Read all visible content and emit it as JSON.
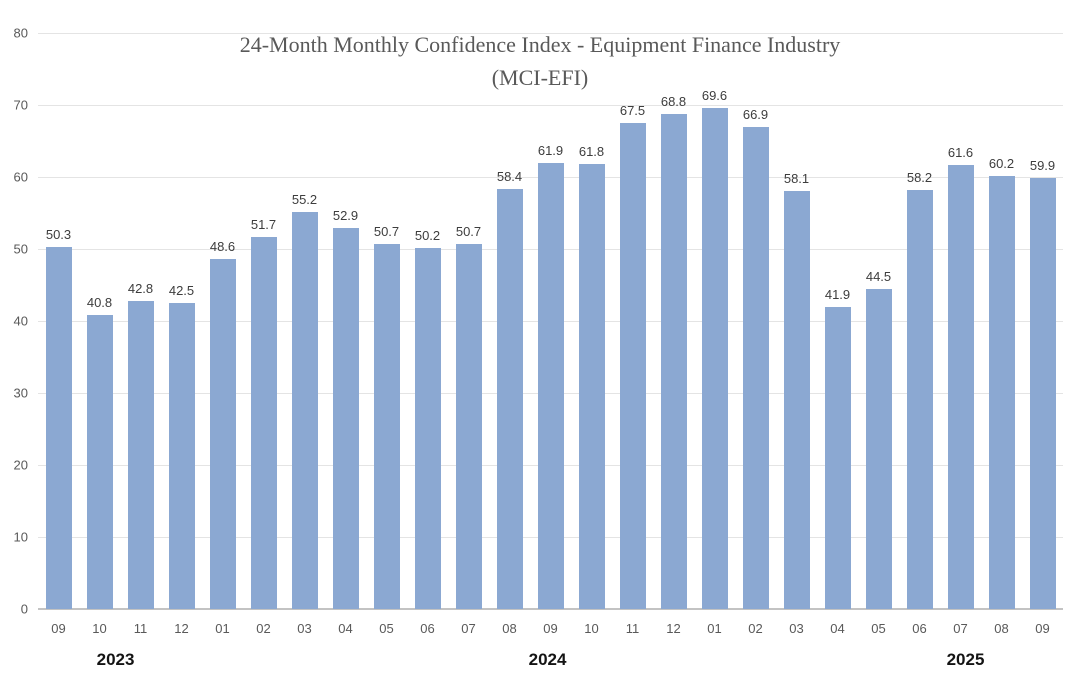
{
  "chart_data": {
    "type": "bar",
    "title_line1": "24-Month Monthly Confidence Index - Equipment Finance Industry",
    "title_line2": "(MCI-EFI)",
    "categories": [
      "09",
      "10",
      "11",
      "12",
      "01",
      "02",
      "03",
      "04",
      "05",
      "06",
      "07",
      "08",
      "09",
      "10",
      "11",
      "12",
      "01",
      "02",
      "03",
      "04",
      "05",
      "06",
      "07",
      "08",
      "09"
    ],
    "values": [
      50.3,
      40.8,
      42.8,
      42.5,
      48.6,
      51.7,
      55.2,
      52.9,
      50.7,
      50.2,
      50.7,
      58.4,
      61.9,
      61.8,
      67.5,
      68.8,
      69.6,
      66.9,
      58.1,
      41.9,
      44.5,
      58.2,
      61.6,
      60.2,
      59.9
    ],
    "year_labels": [
      {
        "label": "2023",
        "x_pct": 10.7
      },
      {
        "label": "2024",
        "x_pct": 50.7
      },
      {
        "label": "2025",
        "x_pct": 89.4
      }
    ],
    "y_ticks": [
      0,
      10,
      20,
      30,
      40,
      50,
      60,
      70,
      80
    ],
    "ylim": [
      0,
      80
    ],
    "grid": true,
    "legend": "none",
    "bar_color": "#8ba8d2",
    "gridline_color": "#e4e4e4",
    "axis_line_color": "#c3c3c3",
    "title_color": "#595959",
    "value_label_color": "#3d3d3d",
    "tick_label_color": "#595959"
  }
}
